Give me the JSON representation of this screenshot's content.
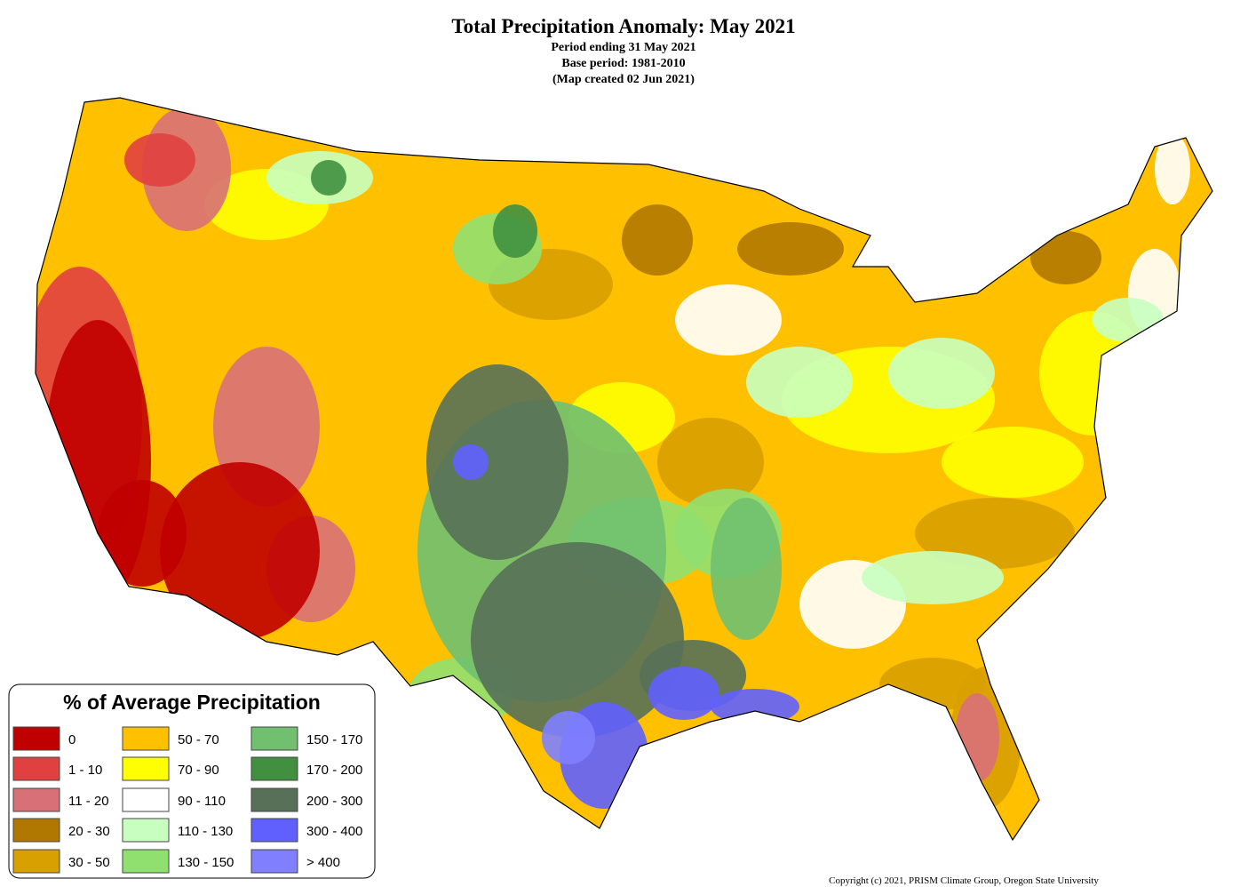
{
  "header": {
    "title": "Total Precipitation Anomaly: May 2021",
    "lines": [
      "Period ending 31 May 2021",
      "Base period: 1981-2010",
      "(Map created 02 Jun 2021)"
    ]
  },
  "legend": {
    "title": "% of Average Precipitation",
    "items": [
      {
        "label": "0",
        "color": "#c00000"
      },
      {
        "label": "1 - 10",
        "color": "#e04040"
      },
      {
        "label": "11 - 20",
        "color": "#d87078"
      },
      {
        "label": "20 - 30",
        "color": "#b07800"
      },
      {
        "label": "30 - 50",
        "color": "#d8a000"
      },
      {
        "label": "50 - 70",
        "color": "#ffc000"
      },
      {
        "label": "70 - 90",
        "color": "#ffff00"
      },
      {
        "label": "90 - 110",
        "color": "#ffffff"
      },
      {
        "label": "110 - 130",
        "color": "#c8ffc0"
      },
      {
        "label": "130 - 150",
        "color": "#90e070"
      },
      {
        "label": "150 - 170",
        "color": "#70c070"
      },
      {
        "label": "170 - 200",
        "color": "#409040"
      },
      {
        "label": "200 - 300",
        "color": "#587058"
      },
      {
        "label": "300 - 400",
        "color": "#6060ff"
      },
      {
        "label": "> 400",
        "color": "#8080ff"
      }
    ]
  },
  "copyright": "Copyright (c) 2021, PRISM Climate Group, Oregon State University"
}
